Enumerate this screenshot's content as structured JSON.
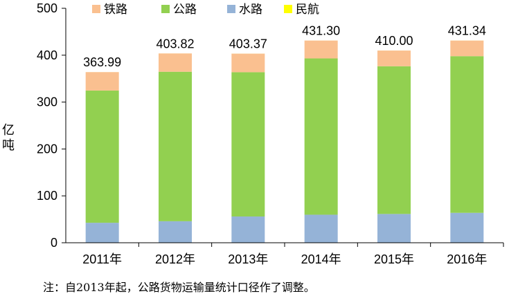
{
  "chart_data": {
    "type": "bar",
    "stacked": true,
    "categories": [
      "2011年",
      "2012年",
      "2013年",
      "2014年",
      "2015年",
      "2016年"
    ],
    "series": [
      {
        "name": "水路",
        "color": "#95B3D7",
        "values": [
          42.6,
          45.9,
          56.0,
          59.8,
          61.4,
          63.8
        ]
      },
      {
        "name": "公路",
        "color": "#92D050",
        "values": [
          282.0,
          318.8,
          307.7,
          333.3,
          315.0,
          334.1
        ]
      },
      {
        "name": "铁路",
        "color": "#FAC090",
        "values": [
          39.3,
          39.0,
          39.6,
          38.1,
          33.5,
          33.3
        ]
      },
      {
        "name": "民航",
        "color": "#FFFF00",
        "values": [
          0.06,
          0.06,
          0.06,
          0.06,
          0.06,
          0.07
        ]
      }
    ],
    "legend_order": [
      "铁路",
      "公路",
      "水路",
      "民航"
    ],
    "totals": [
      "363.99",
      "403.82",
      "403.37",
      "431.30",
      "410.00",
      "431.34"
    ],
    "ylabel": "亿吨",
    "ylim": [
      0,
      500
    ],
    "yticks": [
      "0",
      "100",
      "200",
      "300",
      "400",
      "500"
    ],
    "legend_position": "top",
    "grid": false
  },
  "note": "注：自2013年起，公路货物运输量统计口径作了调整。"
}
